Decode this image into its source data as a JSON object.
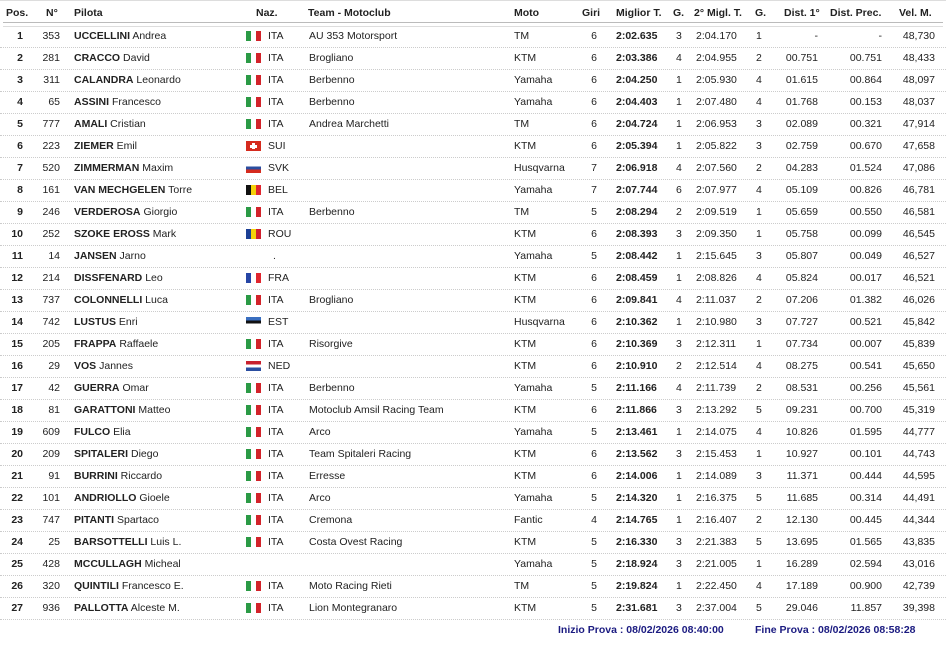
{
  "headers": {
    "pos": "Pos.",
    "num": "N°",
    "pilota": "Pilota",
    "naz": "Naz.",
    "team": "Team - Motoclub",
    "moto": "Moto",
    "giri": "Giri",
    "best": "Miglior T.",
    "g1": "G.",
    "second": "2° Migl. T.",
    "g2": "G.",
    "dist1": "Dist. 1°",
    "distprec": "Dist. Prec.",
    "vel": "Vel. M."
  },
  "flag_colors": {
    "ITA": {
      "type": "v",
      "colors": [
        "#2a9a45",
        "#ffffff",
        "#d2232a"
      ]
    },
    "SUI": {
      "type": "cross",
      "colors": [
        "#d52b1e",
        "#ffffff"
      ]
    },
    "SVK": {
      "type": "h",
      "colors": [
        "#ffffff",
        "#2a4ea0",
        "#d52b1e"
      ]
    },
    "BEL": {
      "type": "v",
      "colors": [
        "#111111",
        "#f5d20a",
        "#e0262f"
      ]
    },
    "ROU": {
      "type": "v",
      "colors": [
        "#1c3f95",
        "#f5d20a",
        "#d0202e"
      ]
    },
    "FRA": {
      "type": "v",
      "colors": [
        "#2645a5",
        "#ffffff",
        "#e0262f"
      ]
    },
    "EST": {
      "type": "h",
      "colors": [
        "#3a6fc0",
        "#111111",
        "#ffffff"
      ]
    },
    "NED": {
      "type": "h",
      "colors": [
        "#c8202e",
        "#ffffff",
        "#2a4ea0"
      ]
    }
  },
  "rows": [
    {
      "pos": "1",
      "num": "353",
      "surname": "UCCELLINI",
      "name": "Andrea",
      "naz": "ITA",
      "team": "AU 353 Motorsport",
      "moto": "TM",
      "giri": "6",
      "best": "2:02.635",
      "g1": "3",
      "second": "2:04.170",
      "g2": "1",
      "dist1": "-",
      "distprec": "-",
      "vel": "48,730"
    },
    {
      "pos": "2",
      "num": "281",
      "surname": "CRACCO",
      "name": "David",
      "naz": "ITA",
      "team": "Brogliano",
      "moto": "KTM",
      "giri": "6",
      "best": "2:03.386",
      "g1": "4",
      "second": "2:04.955",
      "g2": "2",
      "dist1": "00.751",
      "distprec": "00.751",
      "vel": "48,433"
    },
    {
      "pos": "3",
      "num": "311",
      "surname": "CALANDRA",
      "name": "Leonardo",
      "naz": "ITA",
      "team": "Berbenno",
      "moto": "Yamaha",
      "giri": "6",
      "best": "2:04.250",
      "g1": "1",
      "second": "2:05.930",
      "g2": "4",
      "dist1": "01.615",
      "distprec": "00.864",
      "vel": "48,097"
    },
    {
      "pos": "4",
      "num": "65",
      "surname": "ASSINI",
      "name": "Francesco",
      "naz": "ITA",
      "team": "Berbenno",
      "moto": "Yamaha",
      "giri": "6",
      "best": "2:04.403",
      "g1": "1",
      "second": "2:07.480",
      "g2": "4",
      "dist1": "01.768",
      "distprec": "00.153",
      "vel": "48,037"
    },
    {
      "pos": "5",
      "num": "777",
      "surname": "AMALI",
      "name": "Cristian",
      "naz": "ITA",
      "team": "Andrea Marchetti",
      "moto": "TM",
      "giri": "6",
      "best": "2:04.724",
      "g1": "1",
      "second": "2:06.953",
      "g2": "3",
      "dist1": "02.089",
      "distprec": "00.321",
      "vel": "47,914"
    },
    {
      "pos": "6",
      "num": "223",
      "surname": "ZIEMER",
      "name": "Emil",
      "naz": "SUI",
      "team": "",
      "moto": "KTM",
      "giri": "6",
      "best": "2:05.394",
      "g1": "1",
      "second": "2:05.822",
      "g2": "3",
      "dist1": "02.759",
      "distprec": "00.670",
      "vel": "47,658"
    },
    {
      "pos": "7",
      "num": "520",
      "surname": "ZIMMERMAN",
      "name": "Maxim",
      "naz": "SVK",
      "team": "",
      "moto": "Husqvarna",
      "giri": "7",
      "best": "2:06.918",
      "g1": "4",
      "second": "2:07.560",
      "g2": "2",
      "dist1": "04.283",
      "distprec": "01.524",
      "vel": "47,086"
    },
    {
      "pos": "8",
      "num": "161",
      "surname": "VAN MECHGELEN",
      "name": "Torre",
      "naz": "BEL",
      "team": "",
      "moto": "Yamaha",
      "giri": "7",
      "best": "2:07.744",
      "g1": "6",
      "second": "2:07.977",
      "g2": "4",
      "dist1": "05.109",
      "distprec": "00.826",
      "vel": "46,781"
    },
    {
      "pos": "9",
      "num": "246",
      "surname": "VERDEROSA",
      "name": "Giorgio",
      "naz": "ITA",
      "team": "Berbenno",
      "moto": "TM",
      "giri": "5",
      "best": "2:08.294",
      "g1": "2",
      "second": "2:09.519",
      "g2": "1",
      "dist1": "05.659",
      "distprec": "00.550",
      "vel": "46,581"
    },
    {
      "pos": "10",
      "num": "252",
      "surname": "SZOKE EROSS",
      "name": "Mark",
      "naz": "ROU",
      "team": "",
      "moto": "KTM",
      "giri": "6",
      "best": "2:08.393",
      "g1": "3",
      "second": "2:09.350",
      "g2": "1",
      "dist1": "05.758",
      "distprec": "00.099",
      "vel": "46,545"
    },
    {
      "pos": "11",
      "num": "14",
      "surname": "JANSEN",
      "name": "Jarno",
      "naz": ".",
      "team": "",
      "moto": "Yamaha",
      "giri": "5",
      "best": "2:08.442",
      "g1": "1",
      "second": "2:15.645",
      "g2": "3",
      "dist1": "05.807",
      "distprec": "00.049",
      "vel": "46,527"
    },
    {
      "pos": "12",
      "num": "214",
      "surname": "DISSFENARD",
      "name": "Leo",
      "naz": "FRA",
      "team": "",
      "moto": "KTM",
      "giri": "6",
      "best": "2:08.459",
      "g1": "1",
      "second": "2:08.826",
      "g2": "4",
      "dist1": "05.824",
      "distprec": "00.017",
      "vel": "46,521"
    },
    {
      "pos": "13",
      "num": "737",
      "surname": "COLONNELLI",
      "name": "Luca",
      "naz": "ITA",
      "team": "Brogliano",
      "moto": "KTM",
      "giri": "6",
      "best": "2:09.841",
      "g1": "4",
      "second": "2:11.037",
      "g2": "2",
      "dist1": "07.206",
      "distprec": "01.382",
      "vel": "46,026"
    },
    {
      "pos": "14",
      "num": "742",
      "surname": "LUSTUS",
      "name": "Enri",
      "naz": "EST",
      "team": "",
      "moto": "Husqvarna",
      "giri": "6",
      "best": "2:10.362",
      "g1": "1",
      "second": "2:10.980",
      "g2": "3",
      "dist1": "07.727",
      "distprec": "00.521",
      "vel": "45,842"
    },
    {
      "pos": "15",
      "num": "205",
      "surname": "FRAPPA",
      "name": "Raffaele",
      "naz": "ITA",
      "team": "Risorgive",
      "moto": "KTM",
      "giri": "6",
      "best": "2:10.369",
      "g1": "3",
      "second": "2:12.311",
      "g2": "1",
      "dist1": "07.734",
      "distprec": "00.007",
      "vel": "45,839"
    },
    {
      "pos": "16",
      "num": "29",
      "surname": "VOS",
      "name": "Jannes",
      "naz": "NED",
      "team": "",
      "moto": "KTM",
      "giri": "6",
      "best": "2:10.910",
      "g1": "2",
      "second": "2:12.514",
      "g2": "4",
      "dist1": "08.275",
      "distprec": "00.541",
      "vel": "45,650"
    },
    {
      "pos": "17",
      "num": "42",
      "surname": "GUERRA",
      "name": "Omar",
      "naz": "ITA",
      "team": "Berbenno",
      "moto": "Yamaha",
      "giri": "5",
      "best": "2:11.166",
      "g1": "4",
      "second": "2:11.739",
      "g2": "2",
      "dist1": "08.531",
      "distprec": "00.256",
      "vel": "45,561"
    },
    {
      "pos": "18",
      "num": "81",
      "surname": "GARATTONI",
      "name": "Matteo",
      "naz": "ITA",
      "team": "Motoclub Amsil Racing Team",
      "moto": "KTM",
      "giri": "6",
      "best": "2:11.866",
      "g1": "3",
      "second": "2:13.292",
      "g2": "5",
      "dist1": "09.231",
      "distprec": "00.700",
      "vel": "45,319"
    },
    {
      "pos": "19",
      "num": "609",
      "surname": "FULCO",
      "name": "Elia",
      "naz": "ITA",
      "team": "Arco",
      "moto": "Yamaha",
      "giri": "5",
      "best": "2:13.461",
      "g1": "1",
      "second": "2:14.075",
      "g2": "4",
      "dist1": "10.826",
      "distprec": "01.595",
      "vel": "44,777"
    },
    {
      "pos": "20",
      "num": "209",
      "surname": "SPITALERI",
      "name": "Diego",
      "naz": "ITA",
      "team": "Team Spitaleri Racing",
      "moto": "KTM",
      "giri": "6",
      "best": "2:13.562",
      "g1": "3",
      "second": "2:15.453",
      "g2": "1",
      "dist1": "10.927",
      "distprec": "00.101",
      "vel": "44,743"
    },
    {
      "pos": "21",
      "num": "91",
      "surname": "BURRINI",
      "name": "Riccardo",
      "naz": "ITA",
      "team": "Erresse",
      "moto": "KTM",
      "giri": "6",
      "best": "2:14.006",
      "g1": "1",
      "second": "2:14.089",
      "g2": "3",
      "dist1": "11.371",
      "distprec": "00.444",
      "vel": "44,595"
    },
    {
      "pos": "22",
      "num": "101",
      "surname": "ANDRIOLLO",
      "name": "Gioele",
      "naz": "ITA",
      "team": "Arco",
      "moto": "Yamaha",
      "giri": "5",
      "best": "2:14.320",
      "g1": "1",
      "second": "2:16.375",
      "g2": "5",
      "dist1": "11.685",
      "distprec": "00.314",
      "vel": "44,491"
    },
    {
      "pos": "23",
      "num": "747",
      "surname": "PITANTI",
      "name": "Spartaco",
      "naz": "ITA",
      "team": "Cremona",
      "moto": "Fantic",
      "giri": "4",
      "best": "2:14.765",
      "g1": "1",
      "second": "2:16.407",
      "g2": "2",
      "dist1": "12.130",
      "distprec": "00.445",
      "vel": "44,344"
    },
    {
      "pos": "24",
      "num": "25",
      "surname": "BARSOTTELLI",
      "name": "Luis L.",
      "naz": "ITA",
      "team": "Costa Ovest Racing",
      "moto": "KTM",
      "giri": "5",
      "best": "2:16.330",
      "g1": "3",
      "second": "2:21.383",
      "g2": "5",
      "dist1": "13.695",
      "distprec": "01.565",
      "vel": "43,835"
    },
    {
      "pos": "25",
      "num": "428",
      "surname": "MCCULLAGH",
      "name": "Micheal",
      "naz": "",
      "team": "",
      "moto": "Yamaha",
      "giri": "5",
      "best": "2:18.924",
      "g1": "3",
      "second": "2:21.005",
      "g2": "1",
      "dist1": "16.289",
      "distprec": "02.594",
      "vel": "43,016"
    },
    {
      "pos": "26",
      "num": "320",
      "surname": "QUINTILI",
      "name": "Francesco E.",
      "naz": "ITA",
      "team": "Moto Racing Rieti",
      "moto": "TM",
      "giri": "5",
      "best": "2:19.824",
      "g1": "1",
      "second": "2:22.450",
      "g2": "4",
      "dist1": "17.189",
      "distprec": "00.900",
      "vel": "42,739"
    },
    {
      "pos": "27",
      "num": "936",
      "surname": "PALLOTTA",
      "name": "Alceste M.",
      "naz": "ITA",
      "team": "Lion Montegranaro",
      "moto": "KTM",
      "giri": "5",
      "best": "2:31.681",
      "g1": "3",
      "second": "2:37.004",
      "g2": "5",
      "dist1": "29.046",
      "distprec": "11.857",
      "vel": "39,398"
    }
  ],
  "footer": {
    "start": "Inizio Prova : 08/02/2026 08:40:00",
    "end": "Fine Prova : 08/02/2026 08:58:28"
  }
}
